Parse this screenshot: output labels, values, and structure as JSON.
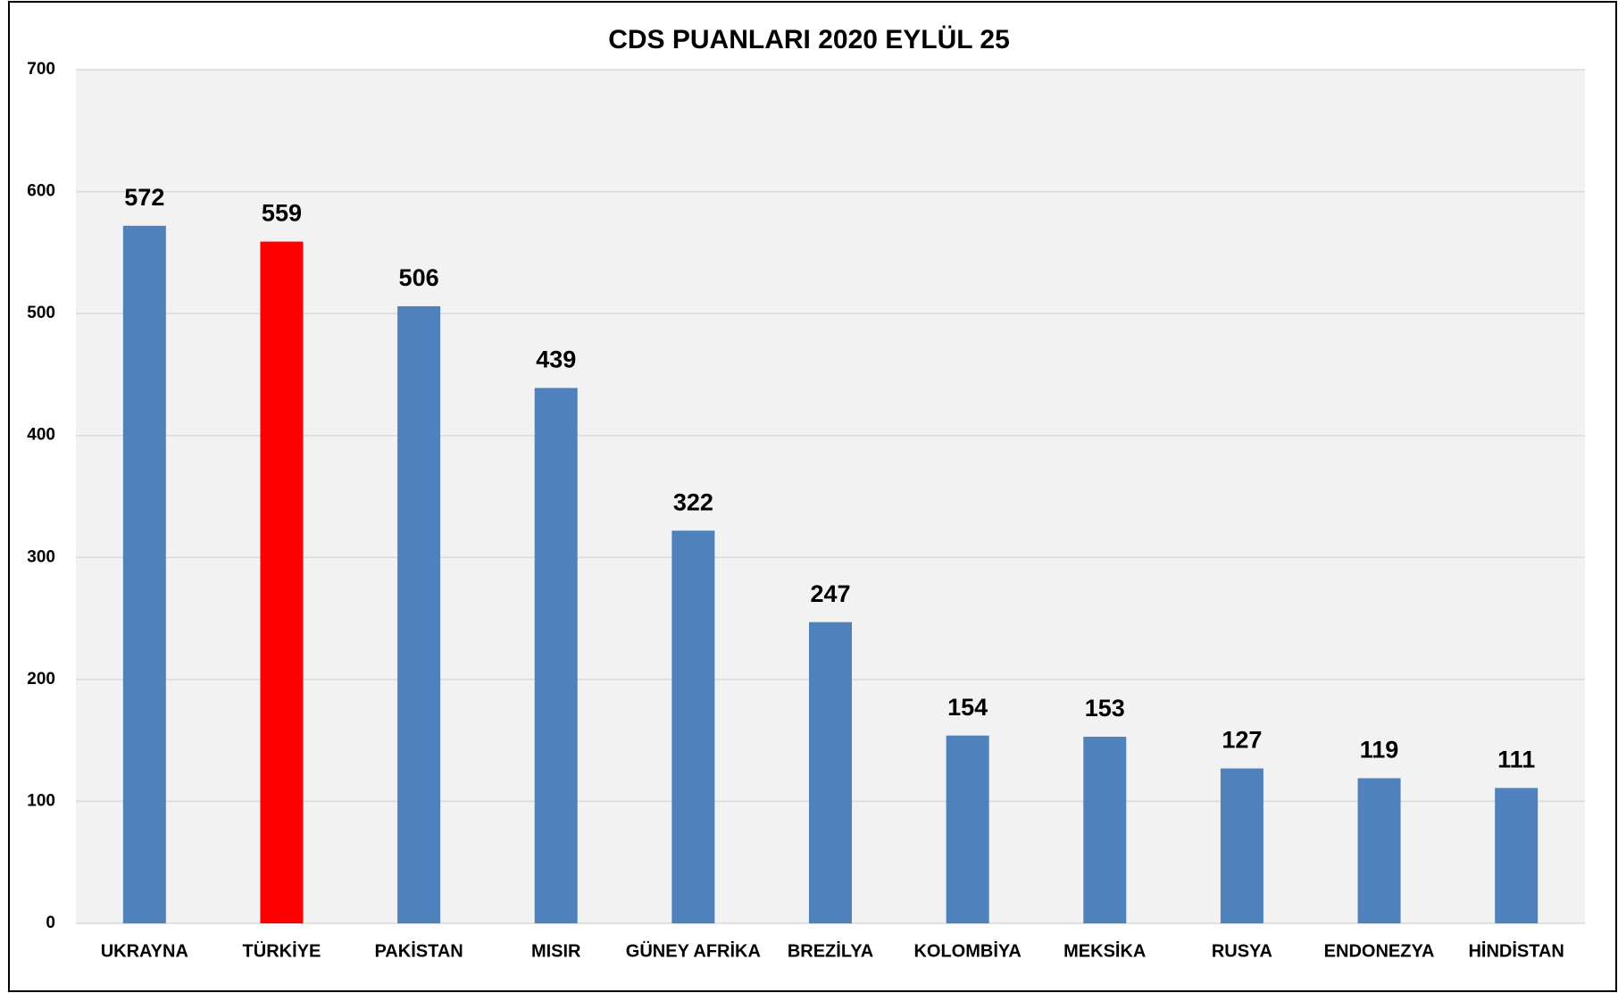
{
  "chart_data": {
    "type": "bar",
    "title": "CDS PUANLARI 2020 EYLÜL 25",
    "categories": [
      "UKRAYNA",
      "TÜRKİYE",
      "PAKİSTAN",
      "MISIR",
      "GÜNEY AFRİKA",
      "BREZİLYA",
      "KOLOMBİYA",
      "MEKSİKA",
      "RUSYA",
      "ENDONEZYA",
      "HİNDİSTAN"
    ],
    "values": [
      572,
      559,
      506,
      439,
      322,
      247,
      154,
      153,
      127,
      119,
      111
    ],
    "colors": [
      "#4f81bd",
      "#ff0000",
      "#4f81bd",
      "#4f81bd",
      "#4f81bd",
      "#4f81bd",
      "#4f81bd",
      "#4f81bd",
      "#4f81bd",
      "#4f81bd",
      "#4f81bd"
    ],
    "ylim": [
      0,
      700
    ],
    "yticks": [
      0,
      100,
      200,
      300,
      400,
      500,
      600,
      700
    ],
    "grid": true
  }
}
